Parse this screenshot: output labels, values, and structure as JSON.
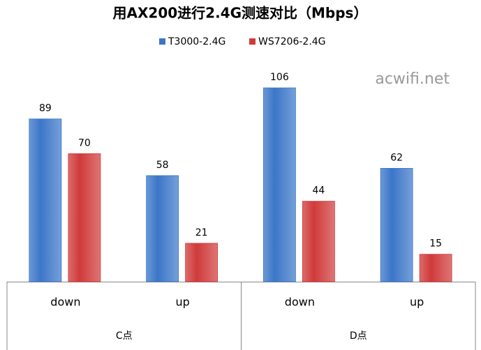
{
  "chart_data": {
    "type": "bar",
    "title": "用AX200进行2.4G测速对比（Mbps）",
    "annotation": "acwifi.net",
    "categories": [
      "down",
      "up",
      "down",
      "up"
    ],
    "group_labels": [
      "C点",
      "D点"
    ],
    "series": [
      {
        "name": "T3000-2.4G",
        "color": "#3b76c8",
        "values": [
          89,
          58,
          106,
          62
        ]
      },
      {
        "name": "WS7206-2.4G",
        "color": "#d03a3a",
        "values": [
          70,
          21,
          44,
          15
        ]
      }
    ]
  }
}
